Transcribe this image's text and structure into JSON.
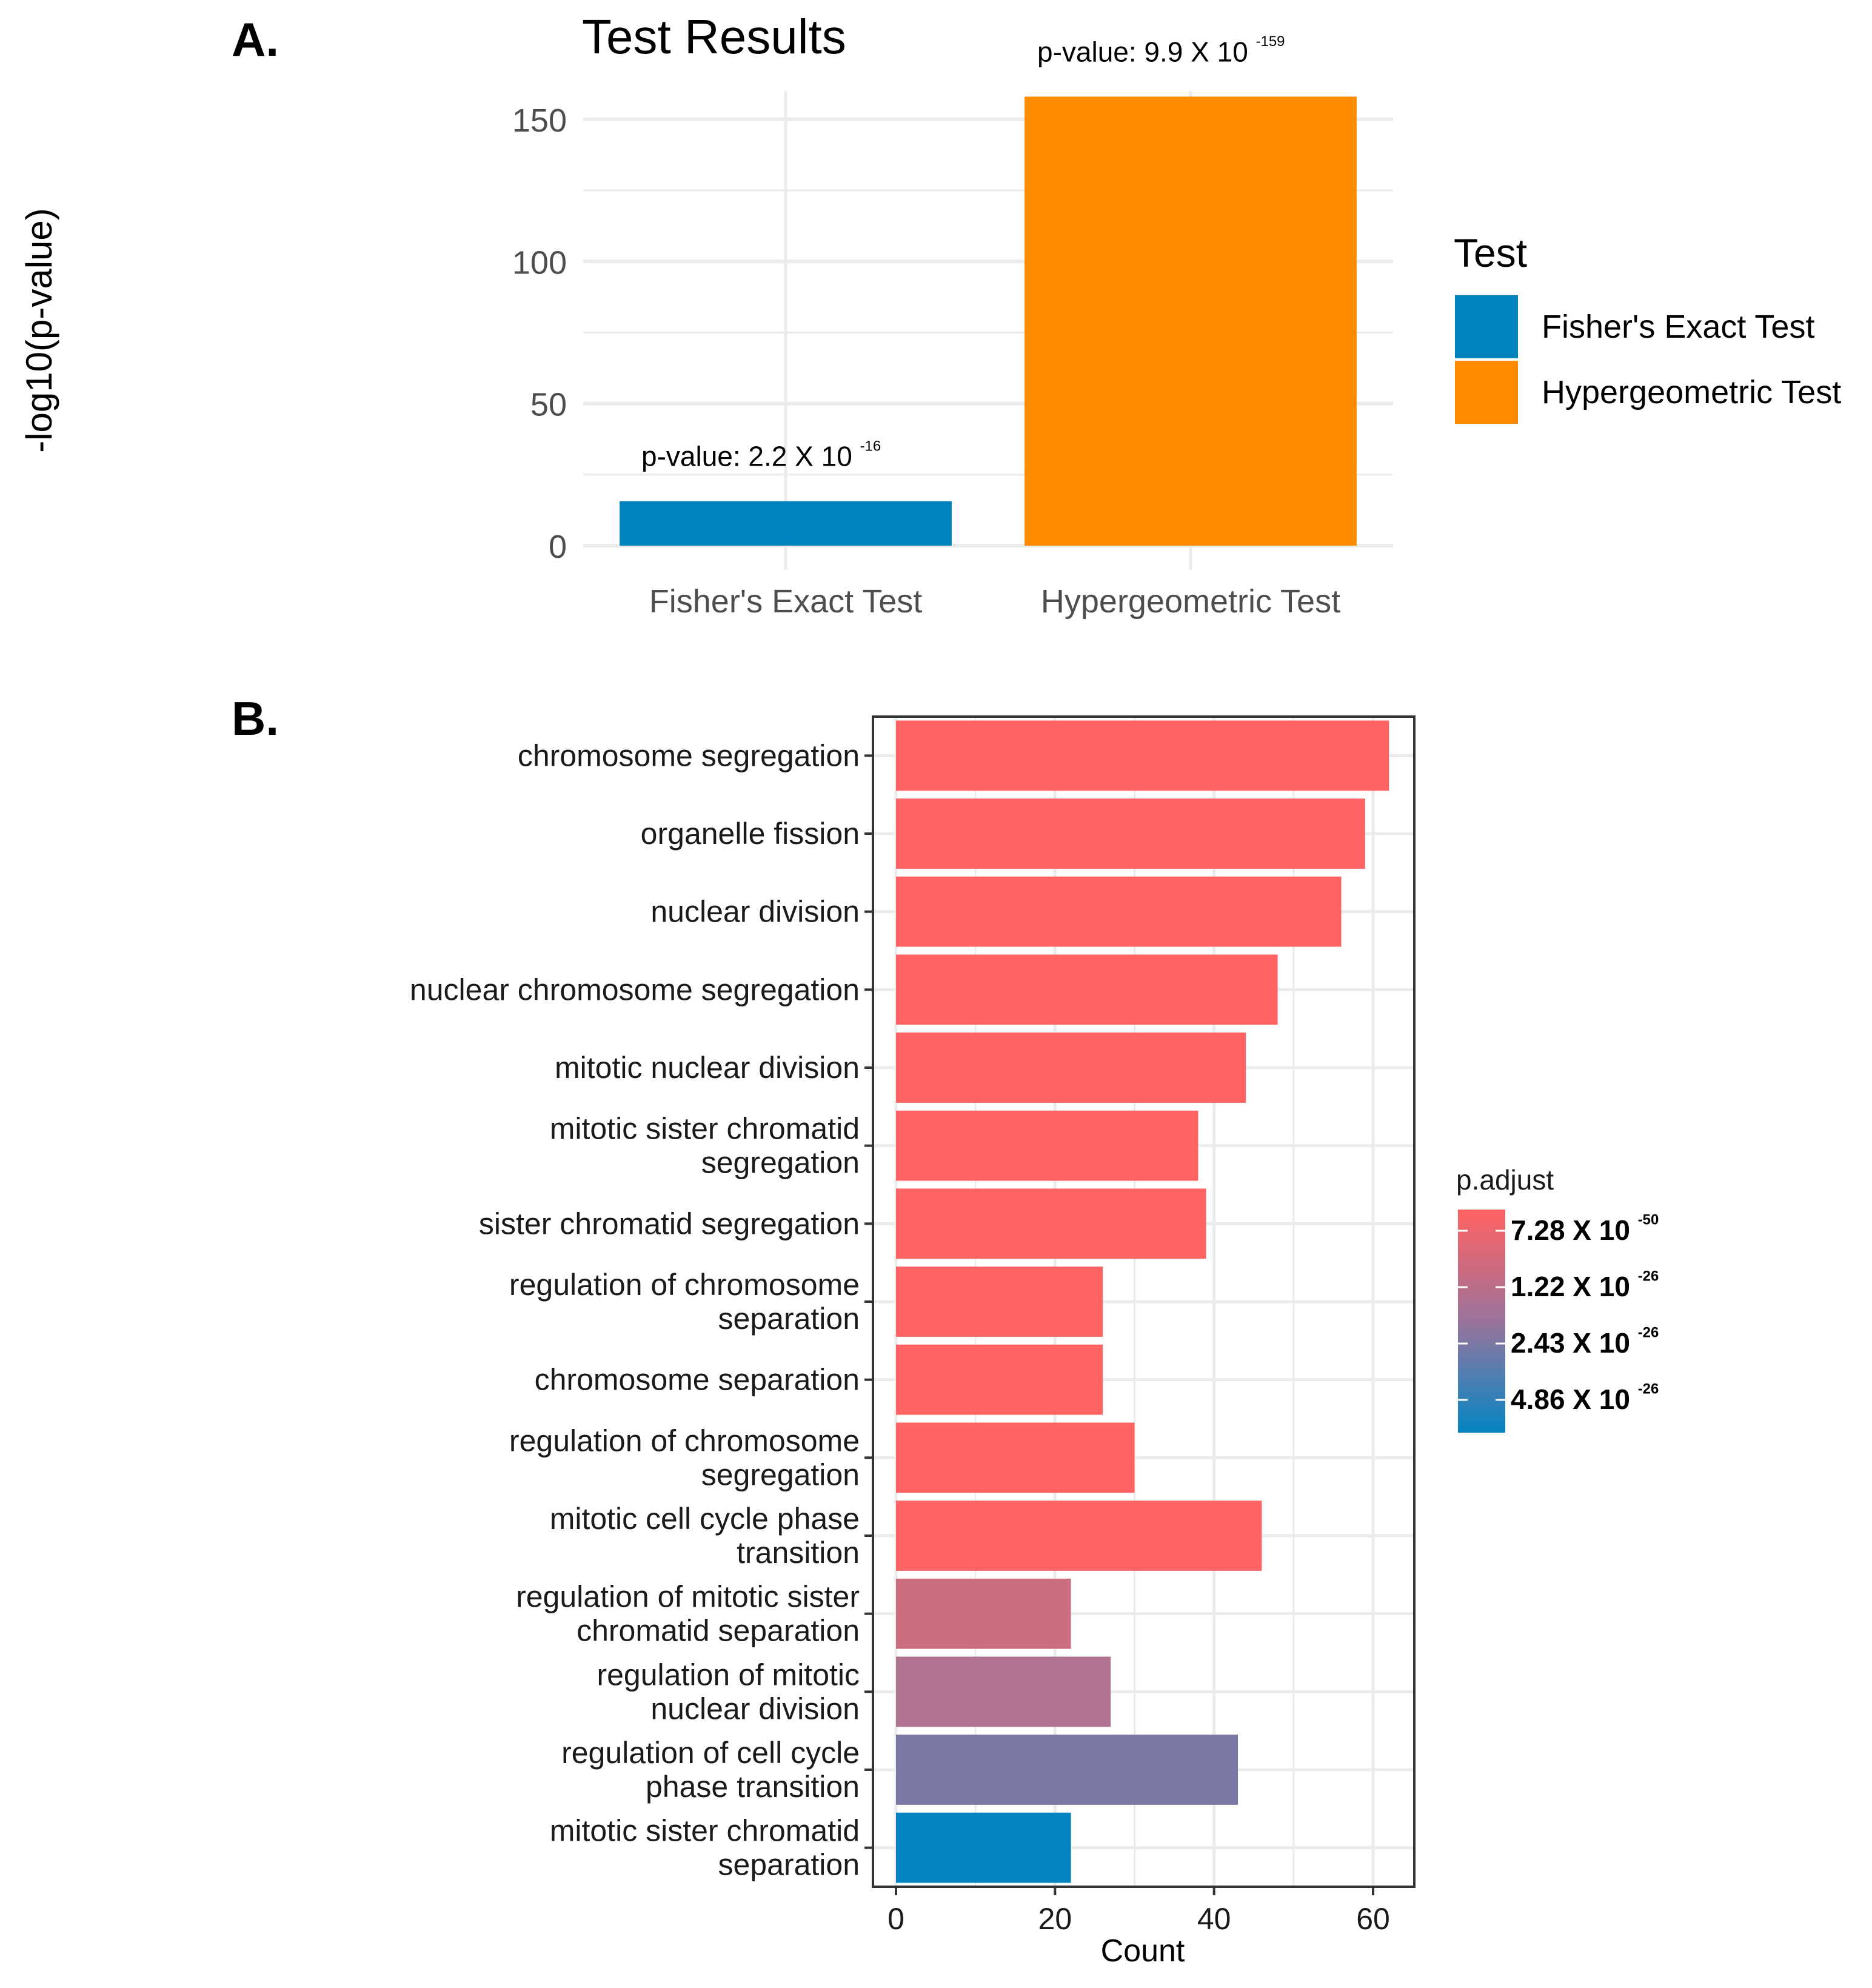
{
  "panels": {
    "a_label": "A.",
    "b_label": "B."
  },
  "chart_data": [
    {
      "type": "bar",
      "title": "Test Results",
      "xlabel": "",
      "ylabel": "-log10(p-value)",
      "categories": [
        "Fisher's Exact Test",
        "Hypergeometric Test"
      ],
      "values": [
        15.66,
        158.0
      ],
      "colors": [
        "#0083BD",
        "#FF8C00"
      ],
      "ylim": [
        0,
        160
      ],
      "yticks": [
        0,
        50,
        100,
        150
      ],
      "grid": true,
      "annotations": [
        {
          "prefix": "p-value: 2.2 X 10",
          "exponent": "-16"
        },
        {
          "prefix": "p-value: 9.9 X 10",
          "exponent": "-159"
        }
      ],
      "legend": {
        "title": "Test",
        "placement": "right",
        "items": [
          "Fisher's Exact Test",
          "Hypergeometric Test"
        ]
      }
    },
    {
      "type": "bar",
      "orientation": "horizontal",
      "xlabel": "Count",
      "ylabel": "",
      "xlim": [
        0,
        65
      ],
      "xticks": [
        0,
        20,
        40,
        60
      ],
      "grid": true,
      "categories": [
        [
          "chromosome segregation"
        ],
        [
          "organelle fission"
        ],
        [
          "nuclear division"
        ],
        [
          "nuclear chromosome segregation"
        ],
        [
          "mitotic nuclear division"
        ],
        [
          "mitotic sister chromatid",
          "segregation"
        ],
        [
          "sister chromatid segregation"
        ],
        [
          "regulation of chromosome",
          "separation"
        ],
        [
          "chromosome separation"
        ],
        [
          "regulation of chromosome",
          "segregation"
        ],
        [
          "mitotic cell cycle phase",
          "transition"
        ],
        [
          "regulation of mitotic sister",
          "chromatid separation"
        ],
        [
          "regulation of mitotic",
          "nuclear division"
        ],
        [
          "regulation of cell cycle",
          "phase transition"
        ],
        [
          "mitotic sister chromatid",
          "separation"
        ]
      ],
      "values": [
        62,
        59,
        56,
        48,
        44,
        38,
        39,
        26,
        26,
        30,
        46,
        22,
        27,
        43,
        22
      ],
      "colors": [
        "#FF6363",
        "#FF6363",
        "#FF6363",
        "#FF6363",
        "#FF6363",
        "#FF6363",
        "#FF6363",
        "#FF6363",
        "#FF6363",
        "#FF6363",
        "#FF6363",
        "#CD6D80",
        "#AF7390",
        "#7B78A6",
        "#0384C0"
      ],
      "colorbar": {
        "title": "p.adjust",
        "gradient": [
          "#FF6363",
          "#D06A7E",
          "#9A739B",
          "#4F7EB2",
          "#0384C0"
        ],
        "labels": [
          {
            "prefix": "7.28 X 10",
            "exponent": "-50"
          },
          {
            "prefix": "1.22 X 10",
            "exponent": "-26"
          },
          {
            "prefix": "2.43 X 10",
            "exponent": "-26"
          },
          {
            "prefix": "4.86 X 10",
            "exponent": "-26"
          }
        ]
      }
    }
  ]
}
